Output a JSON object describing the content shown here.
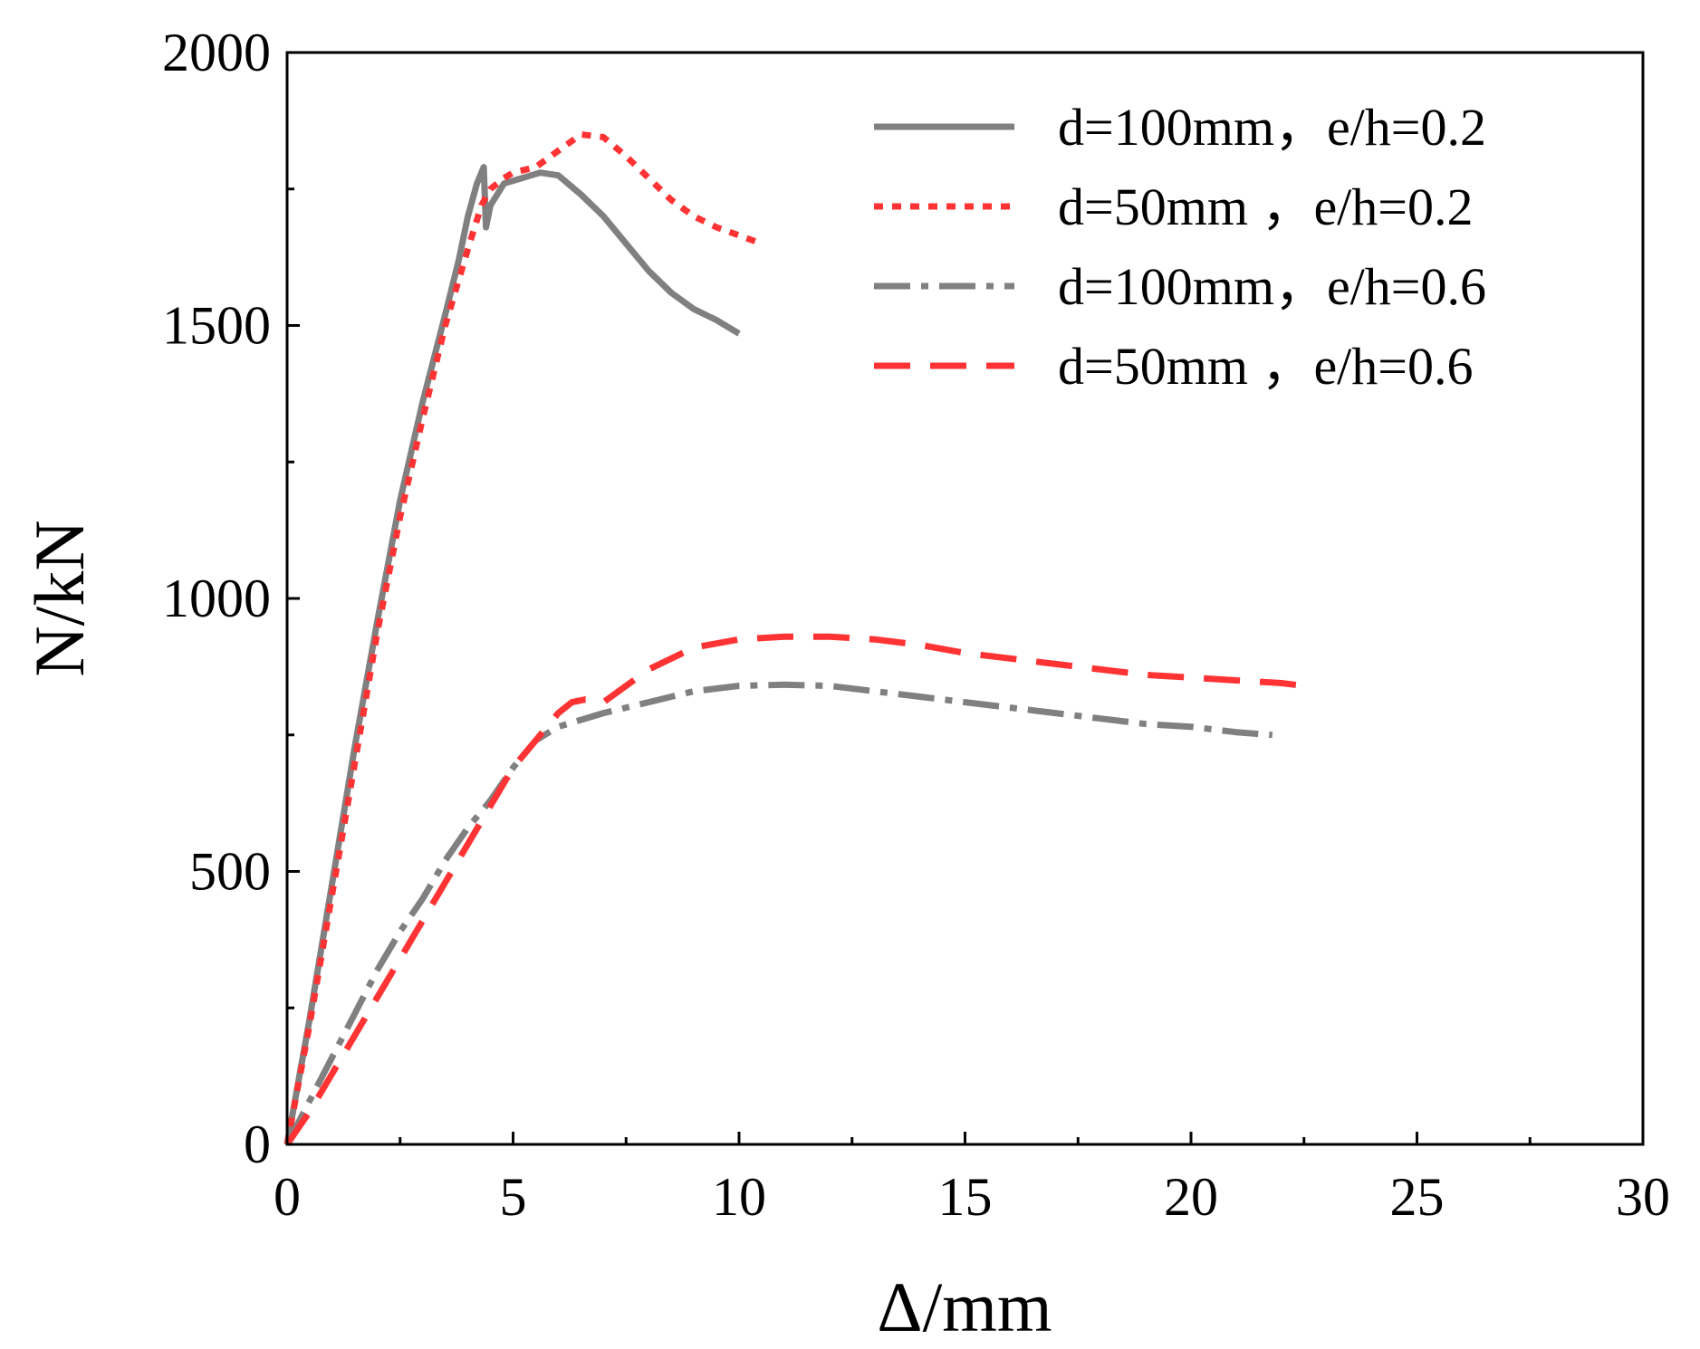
{
  "chart_data": {
    "type": "line",
    "title": "",
    "xlabel": "Δ/mm",
    "ylabel": "N/kN",
    "xlim": [
      0,
      30
    ],
    "ylim": [
      0,
      2000
    ],
    "xticks": [
      0,
      5,
      10,
      15,
      20,
      25,
      30
    ],
    "xtick_labels": [
      "0",
      "5",
      "10",
      "15",
      "20",
      "25",
      "30"
    ],
    "yticks": [
      0,
      500,
      1000,
      1500,
      2000
    ],
    "ytick_labels": [
      "0",
      "500",
      "1000",
      "1500",
      "2000"
    ],
    "grid": false,
    "legend_position": "top-right",
    "series": [
      {
        "name": "d=100mm，e/h=0.2",
        "color": "#808080",
        "dash": "solid",
        "x": [
          0,
          0.5,
          1.0,
          1.5,
          2.0,
          2.5,
          3.0,
          3.5,
          3.8,
          4.0,
          4.2,
          4.35,
          4.4,
          4.5,
          4.8,
          5.2,
          5.6,
          6.0,
          6.5,
          7.0,
          7.5,
          8.0,
          8.5,
          9.0,
          9.5,
          10.0
        ],
        "y": [
          0,
          230,
          480,
          730,
          960,
          1180,
          1360,
          1520,
          1620,
          1700,
          1760,
          1790,
          1680,
          1720,
          1760,
          1770,
          1780,
          1775,
          1740,
          1700,
          1650,
          1600,
          1560,
          1530,
          1510,
          1485
        ]
      },
      {
        "name": "d=50mm ，e/h=0.2",
        "color": "#ff3333",
        "dash": "short-dash",
        "x": [
          0,
          0.5,
          1.0,
          1.5,
          2.0,
          2.5,
          3.0,
          3.5,
          4.0,
          4.3,
          4.5,
          4.8,
          5.0,
          5.5,
          6.0,
          6.5,
          7.0,
          7.5,
          8.0,
          8.5,
          9.0,
          9.5,
          10.0,
          10.5
        ],
        "y": [
          0,
          220,
          460,
          700,
          940,
          1150,
          1330,
          1500,
          1640,
          1720,
          1750,
          1770,
          1780,
          1790,
          1820,
          1850,
          1845,
          1810,
          1770,
          1730,
          1700,
          1680,
          1665,
          1650
        ]
      },
      {
        "name": "d=100mm，e/h=0.6",
        "color": "#808080",
        "dash": "dash-dot",
        "x": [
          0,
          0.5,
          1.0,
          1.5,
          2.0,
          2.5,
          3.0,
          3.5,
          4.0,
          4.5,
          5.0,
          5.5,
          6.0,
          7.0,
          8.0,
          9.0,
          10.0,
          11.0,
          12.0,
          13.0,
          14.0,
          15.0,
          16.0,
          17.0,
          18.0,
          19.0,
          20.0,
          21.0,
          21.8
        ],
        "y": [
          0,
          80,
          160,
          240,
          320,
          390,
          450,
          520,
          580,
          630,
          690,
          740,
          765,
          790,
          810,
          830,
          840,
          842,
          840,
          830,
          820,
          810,
          800,
          790,
          780,
          770,
          765,
          755,
          750
        ]
      },
      {
        "name": "d=50mm ，e/h=0.6",
        "color": "#ff3333",
        "dash": "long-dash",
        "x": [
          0,
          0.5,
          1.0,
          1.5,
          2.0,
          2.5,
          3.0,
          3.5,
          4.0,
          4.5,
          5.0,
          5.5,
          6.0,
          6.3,
          6.6,
          7.0,
          7.5,
          8.0,
          9.0,
          10.0,
          11.0,
          12.0,
          13.0,
          14.0,
          15.0,
          16.0,
          17.0,
          18.0,
          19.0,
          20.0,
          21.0,
          22.0,
          22.5
        ],
        "y": [
          0,
          60,
          130,
          200,
          270,
          340,
          410,
          480,
          550,
          620,
          690,
          740,
          790,
          810,
          815,
          810,
          840,
          870,
          910,
          925,
          930,
          930,
          925,
          915,
          900,
          890,
          880,
          870,
          860,
          855,
          850,
          845,
          840
        ]
      }
    ]
  }
}
